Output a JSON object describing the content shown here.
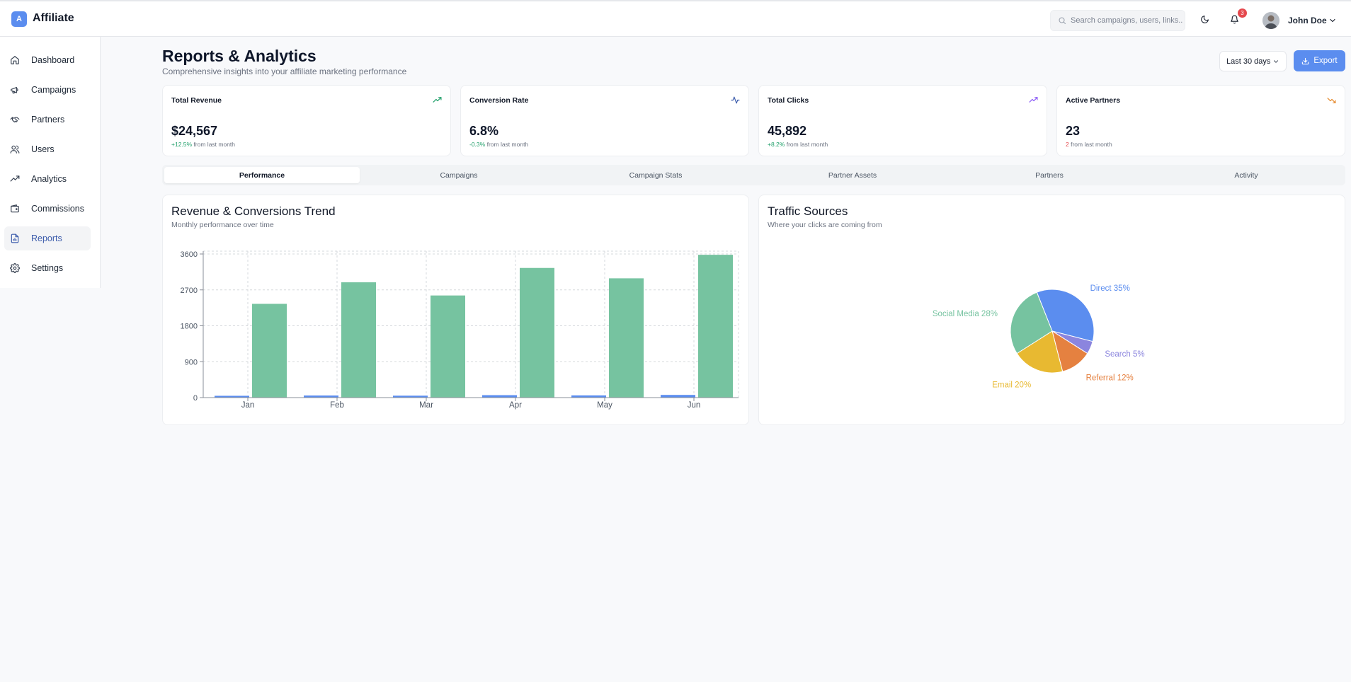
{
  "header": {
    "logo_letter": "A",
    "brand": "Affiliate",
    "search_placeholder": "Search campaigns, users, links...",
    "notification_count": "3",
    "user_name": "John Doe"
  },
  "sidebar": {
    "items": [
      {
        "label": "Dashboard",
        "icon": "home-icon"
      },
      {
        "label": "Campaigns",
        "icon": "megaphone-icon"
      },
      {
        "label": "Partners",
        "icon": "handshake-icon"
      },
      {
        "label": "Users",
        "icon": "users-icon"
      },
      {
        "label": "Analytics",
        "icon": "trending-up-icon"
      },
      {
        "label": "Commissions",
        "icon": "wallet-icon"
      },
      {
        "label": "Reports",
        "icon": "file-chart-icon",
        "active": true
      },
      {
        "label": "Settings",
        "icon": "gear-icon"
      }
    ]
  },
  "page": {
    "title": "Reports & Analytics",
    "subtitle": "Comprehensive insights into your affiliate marketing performance",
    "range_select": "Last 30 days",
    "export_label": "Export"
  },
  "stats": [
    {
      "title": "Total Revenue",
      "value": "$24,567",
      "change": "+12.5%",
      "change_suffix": " from last month",
      "trend": "up",
      "icon": "trending-up-icon",
      "icon_color": "#22a06b"
    },
    {
      "title": "Conversion Rate",
      "value": "6.8%",
      "change": "-0.3%",
      "change_suffix": " from last month",
      "trend": "down",
      "icon": "activity-icon",
      "icon_color": "#3b5bab"
    },
    {
      "title": "Total Clicks",
      "value": "45,892",
      "change": "+8.2%",
      "change_suffix": " from last month",
      "trend": "up",
      "icon": "trending-up-icon",
      "icon_color": "#8b5cf6"
    },
    {
      "title": "Active Partners",
      "value": "23",
      "change": "2",
      "change_suffix": " from last month",
      "trend": "down",
      "icon": "trending-down-icon",
      "icon_color": "#e58a2e"
    }
  ],
  "tabs": [
    {
      "label": "Performance",
      "active": true
    },
    {
      "label": "Campaigns"
    },
    {
      "label": "Campaign Stats"
    },
    {
      "label": "Partner Assets"
    },
    {
      "label": "Partners"
    },
    {
      "label": "Activity"
    }
  ],
  "colors": {
    "accent": "#5b8def",
    "bar_revenue": "#76c3a0",
    "bar_conversions": "#5b8def"
  },
  "chart_data": [
    {
      "type": "bar",
      "title": "Revenue & Conversions Trend",
      "subtitle": "Monthly performance over time",
      "categories": [
        "Jan",
        "Feb",
        "Mar",
        "Apr",
        "May",
        "Jun"
      ],
      "series": [
        {
          "values": [
            45,
            52,
            48,
            61,
            55,
            67
          ],
          "color": "#5b8def"
        },
        {
          "values": [
            2350,
            2890,
            2560,
            3250,
            2990,
            3580
          ],
          "color": "#76c3a0"
        }
      ],
      "yticks": [
        0,
        900,
        1800,
        2700,
        3600
      ],
      "ylim": [
        0,
        3600
      ],
      "grid": true
    },
    {
      "type": "pie",
      "title": "Traffic Sources",
      "subtitle": "Where your clicks are coming from",
      "slices": [
        {
          "label": "Direct 35%",
          "value": 35,
          "color": "#5b8def"
        },
        {
          "label": "Search 5%",
          "value": 5,
          "color": "#8b85de"
        },
        {
          "label": "Referral 12%",
          "value": 12,
          "color": "#e58140"
        },
        {
          "label": "Email 20%",
          "value": 20,
          "color": "#e8b931"
        },
        {
          "label": "Social Media 28%",
          "value": 28,
          "color": "#76c3a0"
        }
      ]
    }
  ]
}
